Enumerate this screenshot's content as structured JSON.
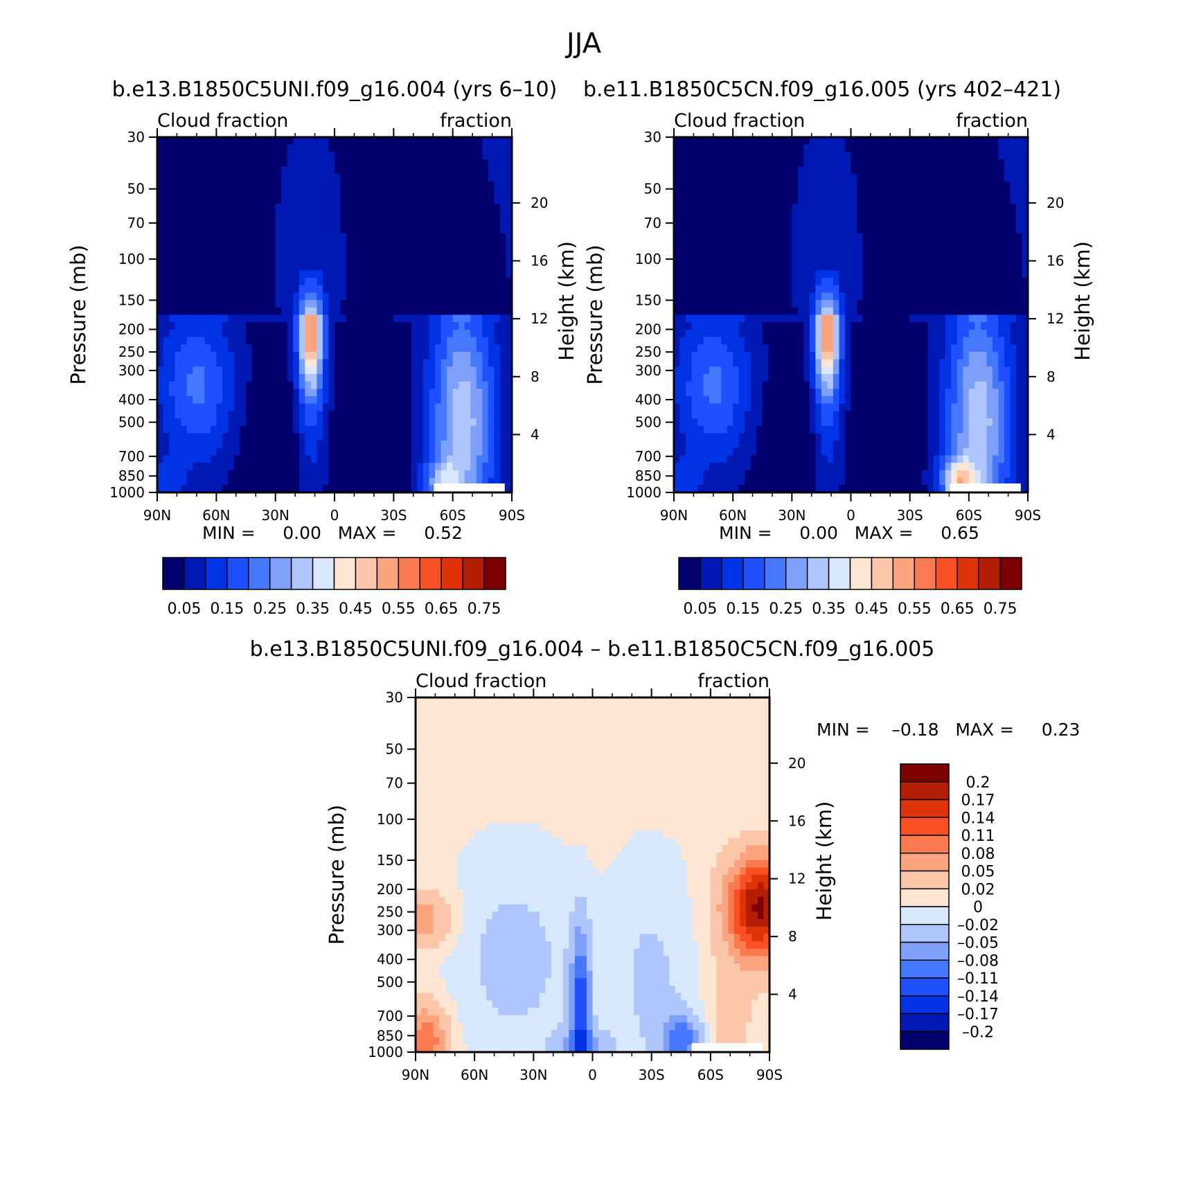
{
  "figure": {
    "title": "JJA"
  },
  "chart_data": [
    {
      "type": "heatmap",
      "title": "b.e13.B1850C5UNI.f09_g16.004 (yrs 6–10)",
      "left_string": "Cloud fraction",
      "right_string": "fraction",
      "ylabel": "Pressure (mb)",
      "ylabel_right": "Height (km)",
      "x_ticks": [
        "90N",
        "60N",
        "30N",
        "0",
        "30S",
        "60S",
        "90S"
      ],
      "x_range": [
        90,
        -90
      ],
      "y_ticks": [
        30,
        50,
        70,
        100,
        150,
        200,
        250,
        300,
        400,
        500,
        700,
        850,
        1000
      ],
      "y_tick_labels": [
        "30",
        "50",
        "70",
        "100",
        "150",
        "200",
        "250",
        "300",
        "400",
        "500",
        "700",
        "850",
        "1000"
      ],
      "y_range": [
        30,
        1000
      ],
      "y_scale": "log",
      "y_right_ticks": [
        20,
        16,
        12,
        8,
        4
      ],
      "min_max_label": "MIN =     0.00   MAX =     0.52",
      "min": 0.0,
      "max": 0.52,
      "colorbar": {
        "orientation": "horizontal",
        "levels": [
          0.05,
          0.1,
          0.15,
          0.2,
          0.25,
          0.3,
          0.35,
          0.4,
          0.45,
          0.5,
          0.55,
          0.6,
          0.65,
          0.7,
          0.75
        ],
        "labels": [
          "0.05",
          "0.15",
          "0.25",
          "0.35",
          "0.45",
          "0.55",
          "0.65",
          "0.75"
        ],
        "colors": [
          "#00006e",
          "#0018b4",
          "#0032e6",
          "#1e50ff",
          "#4678ff",
          "#7ea0fa",
          "#aec6fb",
          "#d8e8fc",
          "#ffe6d2",
          "#fcc6aa",
          "#fca47e",
          "#fc7a50",
          "#f85022",
          "#e03208",
          "#b41e05",
          "#7d0000"
        ]
      }
    },
    {
      "type": "heatmap",
      "title": "b.e11.B1850C5CN.f09_g16.005 (yrs 402–421)",
      "left_string": "Cloud fraction",
      "right_string": "fraction",
      "ylabel": "Pressure (mb)",
      "ylabel_right": "Height (km)",
      "x_ticks": [
        "90N",
        "60N",
        "30N",
        "0",
        "30S",
        "60S",
        "90S"
      ],
      "x_range": [
        90,
        -90
      ],
      "y_ticks": [
        30,
        50,
        70,
        100,
        150,
        200,
        250,
        300,
        400,
        500,
        700,
        850,
        1000
      ],
      "y_tick_labels": [
        "30",
        "50",
        "70",
        "100",
        "150",
        "200",
        "250",
        "300",
        "400",
        "500",
        "700",
        "850",
        "1000"
      ],
      "y_range": [
        30,
        1000
      ],
      "y_scale": "log",
      "y_right_ticks": [
        20,
        16,
        12,
        8,
        4
      ],
      "min_max_label": "MIN =     0.00   MAX =     0.65",
      "min": 0.0,
      "max": 0.65,
      "colorbar": {
        "orientation": "horizontal",
        "levels": [
          0.05,
          0.1,
          0.15,
          0.2,
          0.25,
          0.3,
          0.35,
          0.4,
          0.45,
          0.5,
          0.55,
          0.6,
          0.65,
          0.7,
          0.75
        ],
        "labels": [
          "0.05",
          "0.15",
          "0.25",
          "0.35",
          "0.45",
          "0.55",
          "0.65",
          "0.75"
        ],
        "colors": [
          "#00006e",
          "#0018b4",
          "#0032e6",
          "#1e50ff",
          "#4678ff",
          "#7ea0fa",
          "#aec6fb",
          "#d8e8fc",
          "#ffe6d2",
          "#fcc6aa",
          "#fca47e",
          "#fc7a50",
          "#f85022",
          "#e03208",
          "#b41e05",
          "#7d0000"
        ]
      }
    },
    {
      "type": "heatmap",
      "title": "b.e13.B1850C5UNI.f09_g16.004 – b.e11.B1850C5CN.f09_g16.005",
      "left_string": "Cloud fraction",
      "right_string": "fraction",
      "ylabel": "Pressure (mb)",
      "ylabel_right": "Height (km)",
      "x_ticks": [
        "90N",
        "60N",
        "30N",
        "0",
        "30S",
        "60S",
        "90S"
      ],
      "x_range": [
        90,
        -90
      ],
      "y_ticks": [
        30,
        50,
        70,
        100,
        150,
        200,
        250,
        300,
        400,
        500,
        700,
        850,
        1000
      ],
      "y_tick_labels": [
        "30",
        "50",
        "70",
        "100",
        "150",
        "200",
        "250",
        "300",
        "400",
        "500",
        "700",
        "850",
        "1000"
      ],
      "y_range": [
        30,
        1000
      ],
      "y_scale": "log",
      "y_right_ticks": [
        20,
        16,
        12,
        8,
        4
      ],
      "min_max_label": "MIN =    –0.18   MAX =     0.23",
      "min": -0.18,
      "max": 0.23,
      "colorbar": {
        "orientation": "vertical",
        "levels": [
          0.2,
          0.17,
          0.14,
          0.11,
          0.08,
          0.05,
          0.02,
          0,
          -0.02,
          -0.05,
          -0.08,
          -0.11,
          -0.14,
          -0.17,
          -0.2
        ],
        "labels": [
          "0.2",
          "0.17",
          "0.14",
          "0.11",
          "0.08",
          "0.05",
          "0.02",
          "0",
          "–0.02",
          "–0.05",
          "–0.08",
          "–0.11",
          "–0.14",
          "–0.17",
          "–0.2"
        ],
        "colors": [
          "#7d0000",
          "#b41e05",
          "#e03208",
          "#f85022",
          "#fc7a50",
          "#fca47e",
          "#fcc6aa",
          "#ffe6d2",
          "#d8e8fc",
          "#aec6fb",
          "#7ea0fa",
          "#4678ff",
          "#1e50ff",
          "#0032e6",
          "#0018b4",
          "#00006e"
        ]
      }
    }
  ]
}
